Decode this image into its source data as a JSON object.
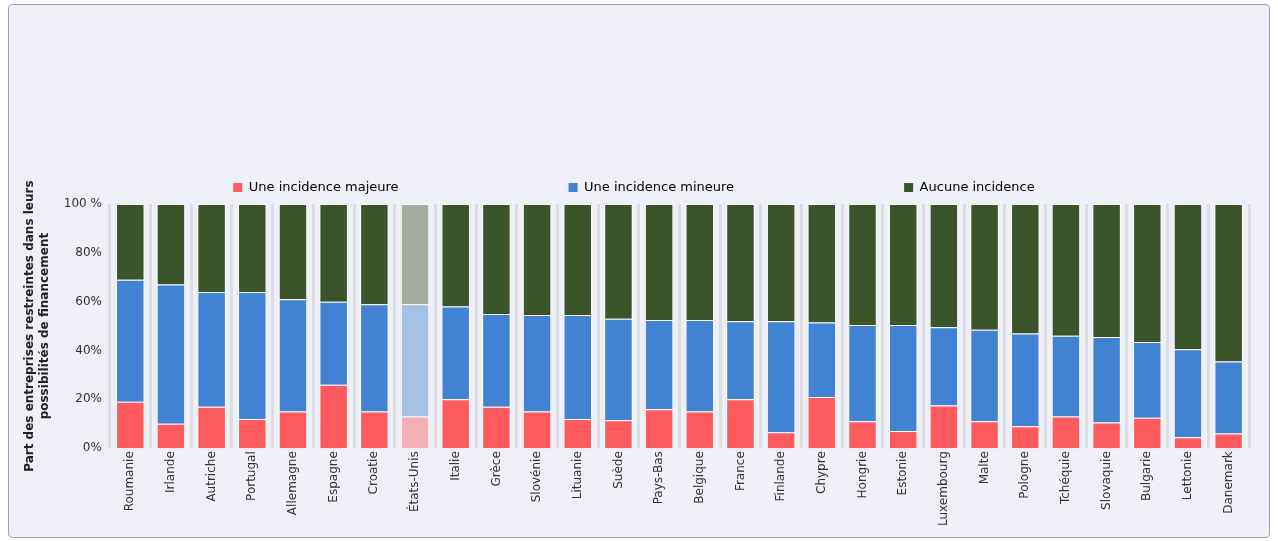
{
  "chart_data": {
    "type": "bar",
    "stacked": true,
    "ylabel": "Part des entreprises restreintes dans leurs possibilités de financement",
    "categories": [
      "Roumanie",
      "Irlande",
      "Autriche",
      "Portugal",
      "Allemagne",
      "Espagne",
      "Croatie",
      "États-Unis",
      "Italie",
      "Grèce",
      "Slovénie",
      "Lituanie",
      "Suède",
      "Pays-Bas",
      "Belgique",
      "France",
      "Finlande",
      "Chypre",
      "Hongrie",
      "Estonie",
      "Luxembourg",
      "Malte",
      "Pologne",
      "Tchéquie",
      "Slovaquie",
      "Bulgarie",
      "Lettonie",
      "Danemark"
    ],
    "series": [
      {
        "name": "Une incidence majeure",
        "color": "#fe5b5f",
        "colors": [
          "#fe5b5f",
          "#fe5b5f",
          "#fe5b5f",
          "#fe5b5f",
          "#fe5b5f",
          "#fe5b5f",
          "#fe5b5f",
          "#f4b0b5",
          "#fe5b5f",
          "#fe5b5f",
          "#fe5b5f",
          "#fe5b5f",
          "#fe5b5f",
          "#fe5b5f",
          "#fe5b5f",
          "#fe5b5f",
          "#fe5b5f",
          "#fe5b5f",
          "#fe5b5f",
          "#fe5b5f",
          "#fe5b5f",
          "#fe5b5f",
          "#fe5b5f",
          "#fe5b5f",
          "#fe5b5f",
          "#fe5b5f",
          "#fe5b5f",
          "#fe5b5f"
        ],
        "values": [
          19,
          10,
          17,
          12,
          15,
          26,
          15,
          13,
          20,
          17,
          15,
          12,
          11.5,
          16,
          15,
          20,
          6.5,
          21,
          11,
          7,
          17.5,
          11,
          9,
          13,
          10.5,
          12.5,
          4.5,
          6
        ]
      },
      {
        "name": "Une incidence mineure",
        "color": "#4182d3",
        "colors": [
          "#4182d3",
          "#4182d3",
          "#4182d3",
          "#4182d3",
          "#4182d3",
          "#4182d3",
          "#4182d3",
          "#a6c1e6",
          "#4182d3",
          "#4182d3",
          "#4182d3",
          "#4182d3",
          "#4182d3",
          "#4182d3",
          "#4182d3",
          "#4182d3",
          "#4182d3",
          "#4182d3",
          "#4182d3",
          "#4182d3",
          "#4182d3",
          "#4182d3",
          "#4182d3",
          "#4182d3",
          "#4182d3",
          "#4182d3",
          "#4182d3",
          "#4182d3"
        ],
        "values": [
          50,
          57,
          47,
          52,
          46,
          34,
          44,
          46,
          38,
          38,
          39.5,
          42.5,
          41.5,
          36.5,
          37.5,
          32,
          45.5,
          30.5,
          39.5,
          43.5,
          32,
          37.5,
          38,
          33,
          35,
          31,
          36,
          29.5
        ]
      },
      {
        "name": "Aucune incidence",
        "color": "#3b5429",
        "colors": [
          "#3b5429",
          "#3b5429",
          "#3b5429",
          "#3b5429",
          "#3b5429",
          "#3b5429",
          "#3b5429",
          "#a3ada0",
          "#3b5429",
          "#3b5429",
          "#3b5429",
          "#3b5429",
          "#3b5429",
          "#3b5429",
          "#3b5429",
          "#3b5429",
          "#3b5429",
          "#3b5429",
          "#3b5429",
          "#3b5429",
          "#3b5429",
          "#3b5429",
          "#3b5429",
          "#3b5429",
          "#3b5429",
          "#3b5429",
          "#3b5429",
          "#3b5429"
        ],
        "values": [
          31,
          33,
          36,
          36,
          39,
          40,
          41,
          41,
          42,
          45,
          45.5,
          45.5,
          47,
          47.5,
          47.5,
          48,
          48,
          48.5,
          49.5,
          49.5,
          50.5,
          51.5,
          53,
          54,
          54.5,
          56.5,
          59.5,
          64.5
        ]
      }
    ],
    "ylim": [
      0,
      100
    ],
    "yticks": [
      {
        "value": 0,
        "label": "0%"
      },
      {
        "value": 20,
        "label": "20%"
      },
      {
        "value": 40,
        "label": "40%"
      },
      {
        "value": 60,
        "label": "60%"
      },
      {
        "value": 80,
        "label": "80%"
      },
      {
        "value": 100,
        "label": "100 %"
      }
    ],
    "grid": "x",
    "legend": "top"
  }
}
